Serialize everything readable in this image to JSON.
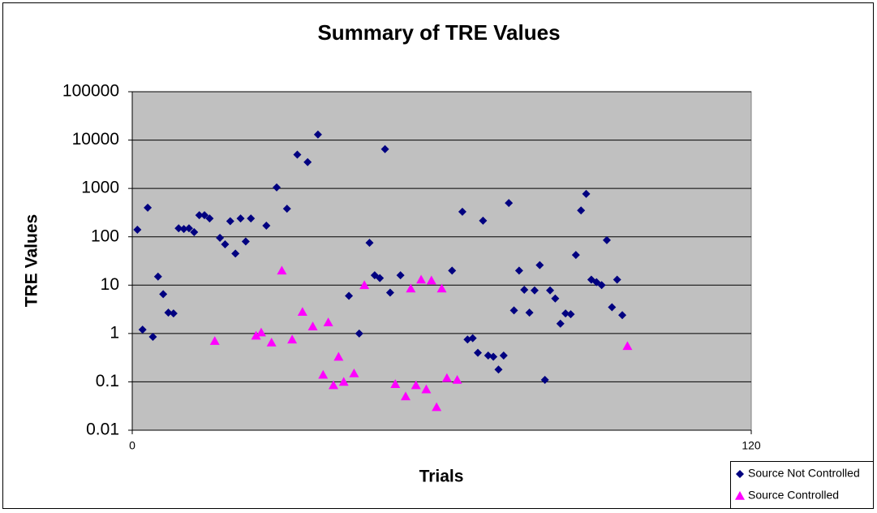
{
  "chart_data": {
    "type": "scatter",
    "title": "Summary of TRE Values",
    "x_label": "Trials",
    "y_label": "TRE Values",
    "xlim": [
      0,
      120
    ],
    "xticks": [
      0,
      120
    ],
    "ylim": [
      0.01,
      100000
    ],
    "yticks": [
      0.01,
      0.1,
      1,
      10,
      100,
      1000,
      10000,
      100000
    ],
    "yscale": "log",
    "grid": true,
    "legend": "bottom-right",
    "background": "#c0c0c0",
    "series": [
      {
        "name": "Source Not Controlled",
        "color": "#000080",
        "marker": "diamond",
        "x": [
          1,
          2,
          3,
          4,
          5,
          6,
          7,
          8,
          9,
          10,
          11,
          12,
          13,
          14,
          15,
          17,
          18,
          19,
          20,
          21,
          22,
          23,
          26,
          28,
          30,
          32,
          34,
          36,
          42,
          44,
          46,
          47,
          48,
          49,
          50,
          52,
          62,
          64,
          65,
          66,
          67,
          68,
          69,
          70,
          71,
          72,
          73,
          74,
          75,
          76,
          77,
          78,
          79,
          80,
          81,
          82,
          83,
          84,
          85,
          86,
          87,
          88,
          89,
          90,
          91,
          92,
          93,
          94,
          95
        ],
        "values": [
          140,
          1.2,
          400,
          0.85,
          15,
          6.5,
          2.7,
          2.6,
          150,
          145,
          150,
          125,
          280,
          280,
          240,
          95,
          70,
          210,
          45,
          240,
          80,
          240,
          170,
          1050,
          380,
          5000,
          3500,
          13000,
          6,
          1,
          75,
          16,
          14,
          6500,
          7,
          16,
          20,
          330,
          0.75,
          0.8,
          0.4,
          215,
          0.35,
          0.33,
          0.18,
          0.35,
          500,
          3,
          20,
          8,
          2.7,
          7.8,
          26,
          0.11,
          7.8,
          5.3,
          1.6,
          2.6,
          2.5,
          42,
          350,
          770,
          13,
          11.5,
          10,
          85,
          3.5,
          13,
          2.4
        ]
      },
      {
        "name": "Source Controlled",
        "color": "#ff00ff",
        "marker": "triangle",
        "x": [
          16,
          24,
          25,
          27,
          29,
          31,
          33,
          35,
          37,
          38,
          39,
          40,
          41,
          43,
          45,
          51,
          53,
          54,
          55,
          56,
          57,
          58,
          59,
          60,
          61,
          63,
          96
        ],
        "values": [
          0.7,
          0.9,
          1.05,
          0.65,
          20,
          0.75,
          2.8,
          1.4,
          0.14,
          1.7,
          0.085,
          0.33,
          0.1,
          0.15,
          10,
          0.09,
          0.05,
          8.5,
          0.085,
          13,
          0.07,
          12.5,
          0.03,
          8.5,
          0.12,
          0.11,
          0.55
        ]
      }
    ]
  }
}
